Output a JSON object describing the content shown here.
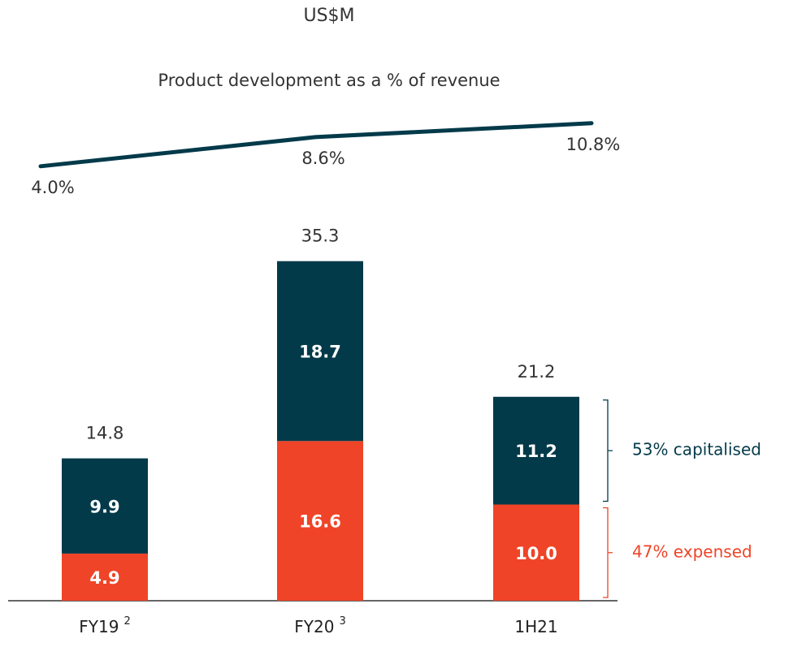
{
  "chart_data": {
    "type": "bar",
    "subtitle": "US$M",
    "categories": [
      "FY19",
      "FY20",
      "1H21"
    ],
    "category_notes": [
      "2",
      "3",
      null
    ],
    "ylim": [
      0,
      40
    ],
    "series": [
      {
        "name": "47% expensed",
        "color": "#ef4427",
        "values": [
          4.9,
          16.6,
          10.0
        ],
        "value_labels": [
          "4.9",
          "16.6",
          "10.0"
        ]
      },
      {
        "name": "53% capitalised",
        "color": "#033a4a",
        "values": [
          9.9,
          18.7,
          11.2
        ]
      }
    ],
    "totals": [
      14.8,
      35.3,
      21.2
    ],
    "line": {
      "type": "line",
      "name": "Product development as a % of revenue",
      "color": "#033a4a",
      "values": [
        4.0,
        8.6,
        10.8
      ],
      "value_labels": [
        "4.0%",
        "8.6%",
        "10.8%"
      ],
      "y2lim": [
        0,
        30
      ]
    }
  }
}
